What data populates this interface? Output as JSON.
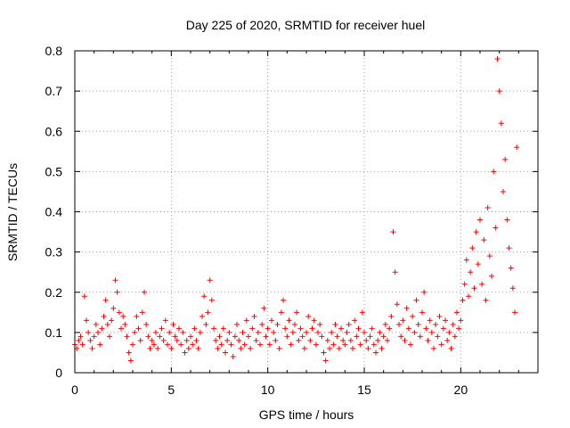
{
  "chart_data": {
    "type": "scatter",
    "title": "Day 225 of 2020, SRMTID for receiver huel",
    "xlabel": "GPS time / hours",
    "ylabel": "SRMTID / TECUs",
    "xlim": [
      0,
      24
    ],
    "ylim": [
      0,
      0.8
    ],
    "x_ticks": [
      0,
      5,
      10,
      15,
      20
    ],
    "x_tick_labels": [
      "0",
      "5",
      "10",
      "15",
      "20"
    ],
    "y_ticks": [
      0,
      0.1,
      0.2,
      0.3,
      0.4,
      0.5,
      0.6,
      0.7,
      0.8
    ],
    "y_tick_labels": [
      "0",
      "0.1",
      "0.2",
      "0.3",
      "0.4",
      "0.5",
      "0.6",
      "0.7",
      "0.8"
    ],
    "grid": true,
    "marker": "plus",
    "color": "#ff0000",
    "series": [
      {
        "name": "SRMTID",
        "points": [
          [
            0.0,
            0.07
          ],
          [
            0.1,
            0.06
          ],
          [
            0.2,
            0.08
          ],
          [
            0.3,
            0.09
          ],
          [
            0.4,
            0.07
          ],
          [
            0.5,
            0.19
          ],
          [
            0.6,
            0.13
          ],
          [
            0.7,
            0.1
          ],
          [
            0.8,
            0.08
          ],
          [
            0.9,
            0.06
          ],
          [
            1.0,
            0.09
          ],
          [
            1.1,
            0.12
          ],
          [
            1.2,
            0.1
          ],
          [
            1.3,
            0.07
          ],
          [
            1.4,
            0.11
          ],
          [
            1.5,
            0.14
          ],
          [
            1.6,
            0.18
          ],
          [
            1.7,
            0.12
          ],
          [
            1.8,
            0.09
          ],
          [
            1.9,
            0.13
          ],
          [
            2.0,
            0.16
          ],
          [
            2.1,
            0.23
          ],
          [
            2.2,
            0.2
          ],
          [
            2.3,
            0.15
          ],
          [
            2.4,
            0.11
          ],
          [
            2.5,
            0.14
          ],
          [
            2.6,
            0.12
          ],
          [
            2.7,
            0.09
          ],
          [
            2.8,
            0.05
          ],
          [
            2.9,
            0.03
          ],
          [
            3.0,
            0.07
          ],
          [
            3.1,
            0.1
          ],
          [
            3.2,
            0.14
          ],
          [
            3.3,
            0.11
          ],
          [
            3.4,
            0.08
          ],
          [
            3.5,
            0.15
          ],
          [
            3.6,
            0.2
          ],
          [
            3.7,
            0.12
          ],
          [
            3.8,
            0.09
          ],
          [
            3.9,
            0.06
          ],
          [
            4.0,
            0.08
          ],
          [
            4.1,
            0.07
          ],
          [
            4.2,
            0.1
          ],
          [
            4.3,
            0.06
          ],
          [
            4.4,
            0.09
          ],
          [
            4.5,
            0.11
          ],
          [
            4.6,
            0.08
          ],
          [
            4.7,
            0.13
          ],
          [
            4.8,
            0.07
          ],
          [
            4.9,
            0.1
          ],
          [
            5.0,
            0.06
          ],
          [
            5.1,
            0.12
          ],
          [
            5.2,
            0.09
          ],
          [
            5.3,
            0.08
          ],
          [
            5.4,
            0.11
          ],
          [
            5.5,
            0.07
          ],
          [
            5.6,
            0.1
          ],
          [
            5.7,
            0.05
          ],
          [
            5.8,
            0.08
          ],
          [
            5.9,
            0.06
          ],
          [
            6.0,
            0.09
          ],
          [
            6.1,
            0.07
          ],
          [
            6.2,
            0.11
          ],
          [
            6.3,
            0.08
          ],
          [
            6.4,
            0.06
          ],
          [
            6.5,
            0.1
          ],
          [
            6.6,
            0.14
          ],
          [
            6.7,
            0.19
          ],
          [
            6.8,
            0.12
          ],
          [
            6.9,
            0.15
          ],
          [
            7.0,
            0.23
          ],
          [
            7.1,
            0.18
          ],
          [
            7.2,
            0.11
          ],
          [
            7.3,
            0.08
          ],
          [
            7.4,
            0.06
          ],
          [
            7.5,
            0.09
          ],
          [
            7.6,
            0.07
          ],
          [
            7.7,
            0.11
          ],
          [
            7.8,
            0.05
          ],
          [
            7.9,
            0.08
          ],
          [
            8.0,
            0.1
          ],
          [
            8.1,
            0.07
          ],
          [
            8.2,
            0.04
          ],
          [
            8.3,
            0.09
          ],
          [
            8.4,
            0.12
          ],
          [
            8.5,
            0.08
          ],
          [
            8.6,
            0.06
          ],
          [
            8.7,
            0.1
          ],
          [
            8.8,
            0.07
          ],
          [
            8.9,
            0.13
          ],
          [
            9.0,
            0.09
          ],
          [
            9.1,
            0.06
          ],
          [
            9.2,
            0.11
          ],
          [
            9.3,
            0.14
          ],
          [
            9.4,
            0.08
          ],
          [
            9.5,
            0.1
          ],
          [
            9.6,
            0.07
          ],
          [
            9.7,
            0.12
          ],
          [
            9.8,
            0.16
          ],
          [
            9.9,
            0.09
          ],
          [
            10.0,
            0.11
          ],
          [
            10.1,
            0.07
          ],
          [
            10.2,
            0.13
          ],
          [
            10.3,
            0.1
          ],
          [
            10.4,
            0.08
          ],
          [
            10.5,
            0.12
          ],
          [
            10.6,
            0.06
          ],
          [
            10.7,
            0.15
          ],
          [
            10.8,
            0.18
          ],
          [
            10.9,
            0.11
          ],
          [
            11.0,
            0.09
          ],
          [
            11.1,
            0.13
          ],
          [
            11.2,
            0.07
          ],
          [
            11.3,
            0.1
          ],
          [
            11.4,
            0.12
          ],
          [
            11.5,
            0.15
          ],
          [
            11.6,
            0.08
          ],
          [
            11.7,
            0.11
          ],
          [
            11.8,
            0.09
          ],
          [
            11.9,
            0.06
          ],
          [
            12.0,
            0.1
          ],
          [
            12.1,
            0.14
          ],
          [
            12.2,
            0.08
          ],
          [
            12.3,
            0.11
          ],
          [
            12.4,
            0.13
          ],
          [
            12.5,
            0.07
          ],
          [
            12.6,
            0.1
          ],
          [
            12.7,
            0.12
          ],
          [
            12.8,
            0.09
          ],
          [
            12.9,
            0.05
          ],
          [
            13.0,
            0.03
          ],
          [
            13.1,
            0.08
          ],
          [
            13.2,
            0.06
          ],
          [
            13.3,
            0.1
          ],
          [
            13.4,
            0.07
          ],
          [
            13.5,
            0.12
          ],
          [
            13.6,
            0.09
          ],
          [
            13.7,
            0.06
          ],
          [
            13.8,
            0.11
          ],
          [
            13.9,
            0.08
          ],
          [
            14.0,
            0.07
          ],
          [
            14.1,
            0.1
          ],
          [
            14.2,
            0.12
          ],
          [
            14.3,
            0.08
          ],
          [
            14.4,
            0.06
          ],
          [
            14.5,
            0.13
          ],
          [
            14.6,
            0.09
          ],
          [
            14.7,
            0.11
          ],
          [
            14.8,
            0.07
          ],
          [
            14.9,
            0.15
          ],
          [
            15.0,
            0.1
          ],
          [
            15.1,
            0.08
          ],
          [
            15.2,
            0.06
          ],
          [
            15.3,
            0.09
          ],
          [
            15.4,
            0.11
          ],
          [
            15.5,
            0.07
          ],
          [
            15.6,
            0.05
          ],
          [
            15.7,
            0.08
          ],
          [
            15.8,
            0.1
          ],
          [
            15.9,
            0.06
          ],
          [
            16.0,
            0.09
          ],
          [
            16.1,
            0.12
          ],
          [
            16.2,
            0.08
          ],
          [
            16.3,
            0.11
          ],
          [
            16.4,
            0.14
          ],
          [
            16.5,
            0.35
          ],
          [
            16.6,
            0.25
          ],
          [
            16.7,
            0.17
          ],
          [
            16.8,
            0.12
          ],
          [
            16.9,
            0.09
          ],
          [
            17.0,
            0.13
          ],
          [
            17.1,
            0.08
          ],
          [
            17.2,
            0.16
          ],
          [
            17.3,
            0.11
          ],
          [
            17.4,
            0.07
          ],
          [
            17.5,
            0.14
          ],
          [
            17.6,
            0.1
          ],
          [
            17.7,
            0.18
          ],
          [
            17.8,
            0.12
          ],
          [
            17.9,
            0.09
          ],
          [
            18.0,
            0.15
          ],
          [
            18.1,
            0.2
          ],
          [
            18.2,
            0.11
          ],
          [
            18.3,
            0.08
          ],
          [
            18.4,
            0.13
          ],
          [
            18.5,
            0.1
          ],
          [
            18.6,
            0.06
          ],
          [
            18.7,
            0.12
          ],
          [
            18.8,
            0.09
          ],
          [
            18.9,
            0.14
          ],
          [
            19.0,
            0.07
          ],
          [
            19.1,
            0.11
          ],
          [
            19.2,
            0.13
          ],
          [
            19.3,
            0.08
          ],
          [
            19.4,
            0.1
          ],
          [
            19.5,
            0.06
          ],
          [
            19.6,
            0.12
          ],
          [
            19.7,
            0.09
          ],
          [
            19.8,
            0.15
          ],
          [
            19.9,
            0.11
          ],
          [
            20.0,
            0.13
          ],
          [
            20.1,
            0.18
          ],
          [
            20.2,
            0.22
          ],
          [
            20.3,
            0.28
          ],
          [
            20.4,
            0.19
          ],
          [
            20.5,
            0.25
          ],
          [
            20.6,
            0.31
          ],
          [
            20.7,
            0.21
          ],
          [
            20.8,
            0.35
          ],
          [
            20.9,
            0.27
          ],
          [
            21.0,
            0.38
          ],
          [
            21.1,
            0.22
          ],
          [
            21.2,
            0.33
          ],
          [
            21.3,
            0.18
          ],
          [
            21.4,
            0.41
          ],
          [
            21.5,
            0.29
          ],
          [
            21.6,
            0.24
          ],
          [
            21.7,
            0.5
          ],
          [
            21.8,
            0.36
          ],
          [
            21.9,
            0.78
          ],
          [
            22.0,
            0.7
          ],
          [
            22.1,
            0.62
          ],
          [
            22.2,
            0.45
          ],
          [
            22.3,
            0.53
          ],
          [
            22.4,
            0.38
          ],
          [
            22.5,
            0.31
          ],
          [
            22.6,
            0.26
          ],
          [
            22.7,
            0.21
          ],
          [
            22.8,
            0.15
          ],
          [
            22.9,
            0.56
          ]
        ]
      }
    ]
  }
}
